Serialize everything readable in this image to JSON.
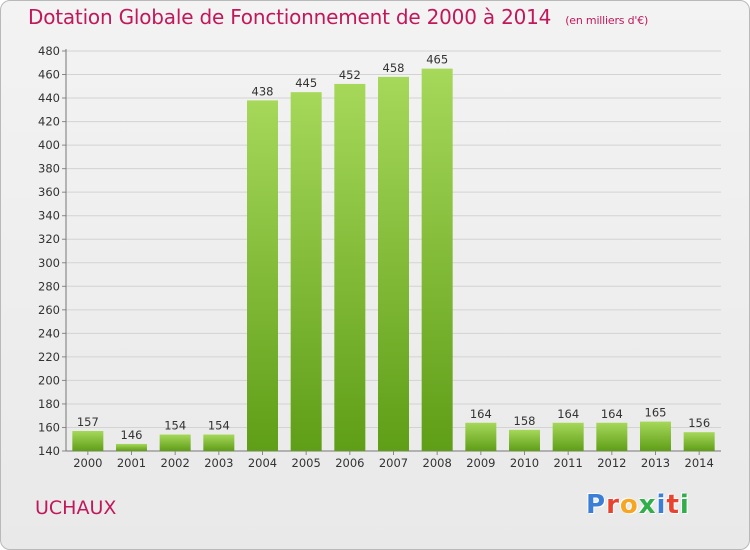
{
  "title": "Dotation Globale de Fonctionnement de 2000 à 2014",
  "subtitle": "(en milliers d'€)",
  "commune": "UCHAUX",
  "logo_text": "Proxiti",
  "colors": {
    "title": "#c2185b",
    "bar_top": "#a6d85a",
    "bar_bottom": "#5f9e17",
    "logo": [
      "#3a7fd5",
      "#e8432e",
      "#f6a623",
      "#2fae4a",
      "#3a7fd5",
      "#e8432e",
      "#2fae4a"
    ]
  },
  "chart_data": {
    "type": "bar",
    "title": "Dotation Globale de Fonctionnement de 2000 à 2014",
    "subtitle": "(en milliers d'€)",
    "xlabel": "",
    "ylabel": "",
    "categories": [
      "2000",
      "2001",
      "2002",
      "2003",
      "2004",
      "2005",
      "2006",
      "2007",
      "2008",
      "2009",
      "2010",
      "2011",
      "2012",
      "2013",
      "2014"
    ],
    "values": [
      157,
      146,
      154,
      154,
      438,
      445,
      452,
      458,
      465,
      164,
      158,
      164,
      164,
      165,
      156
    ],
    "ylim": [
      140,
      480
    ],
    "yticks": [
      140,
      160,
      180,
      200,
      220,
      240,
      260,
      280,
      300,
      320,
      340,
      360,
      380,
      400,
      420,
      440,
      460,
      480
    ],
    "grid": true,
    "legend": "none"
  }
}
